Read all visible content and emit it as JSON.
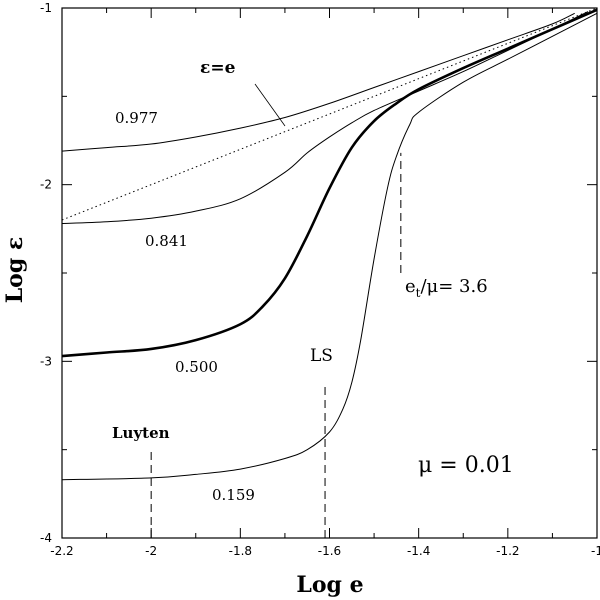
{
  "chart_data": {
    "type": "line",
    "title": "",
    "xlabel": "Log e",
    "ylabel": "Log ε",
    "xlim": [
      -2.2,
      -1
    ],
    "ylim": [
      -4,
      -1
    ],
    "grid": false,
    "x_ticks": [
      -2.2,
      -2,
      -1.8,
      -1.6,
      -1.4,
      -1.2,
      -1
    ],
    "x_tick_labels": [
      "-2.2",
      "-2",
      "-1.8",
      "-1.6",
      "-1.4",
      "-1.2",
      "-1"
    ],
    "y_ticks": [
      -4,
      -3,
      -2,
      -1
    ],
    "y_tick_labels": [
      "-4",
      "-3",
      "-2",
      "-1"
    ],
    "series": [
      {
        "name": "0.977",
        "style": "thin",
        "x": [
          -2.2,
          -2.1,
          -2.0,
          -1.9,
          -1.8,
          -1.7,
          -1.6,
          -1.5,
          -1.4,
          -1.3,
          -1.2,
          -1.1,
          -1.05
        ],
        "y": [
          -1.81,
          -1.79,
          -1.77,
          -1.73,
          -1.68,
          -1.62,
          -1.54,
          -1.45,
          -1.36,
          -1.27,
          -1.18,
          -1.09,
          -1.03
        ]
      },
      {
        "name": "0.841",
        "style": "thin",
        "x": [
          -2.2,
          -2.1,
          -2.0,
          -1.9,
          -1.8,
          -1.7,
          -1.65,
          -1.6,
          -1.55,
          -1.5,
          -1.4,
          -1.3,
          -1.2,
          -1.1,
          -1.02
        ],
        "y": [
          -2.22,
          -2.21,
          -2.19,
          -2.15,
          -2.08,
          -1.93,
          -1.82,
          -1.73,
          -1.65,
          -1.58,
          -1.47,
          -1.36,
          -1.24,
          -1.12,
          -1.02
        ]
      },
      {
        "name": "0.500",
        "style": "thick",
        "x": [
          -2.2,
          -2.1,
          -2.0,
          -1.9,
          -1.8,
          -1.75,
          -1.7,
          -1.65,
          -1.6,
          -1.55,
          -1.5,
          -1.45,
          -1.4,
          -1.3,
          -1.2,
          -1.1,
          -1.0
        ],
        "y": [
          -2.97,
          -2.95,
          -2.93,
          -2.88,
          -2.79,
          -2.69,
          -2.53,
          -2.29,
          -2.02,
          -1.79,
          -1.64,
          -1.54,
          -1.46,
          -1.34,
          -1.23,
          -1.12,
          -1.01
        ]
      },
      {
        "name": "0.159",
        "style": "thin",
        "x": [
          -2.2,
          -2.0,
          -1.9,
          -1.8,
          -1.7,
          -1.65,
          -1.6,
          -1.57,
          -1.55,
          -1.53,
          -1.5,
          -1.47,
          -1.45,
          -1.42,
          -1.4,
          -1.3,
          -1.2,
          -1.1,
          -1.0
        ],
        "y": [
          -3.67,
          -3.66,
          -3.64,
          -3.61,
          -3.55,
          -3.5,
          -3.4,
          -3.27,
          -3.12,
          -2.88,
          -2.42,
          -2.02,
          -1.84,
          -1.66,
          -1.59,
          -1.42,
          -1.29,
          -1.16,
          -1.03
        ]
      },
      {
        "name": "ε=e",
        "style": "dotted",
        "x": [
          -2.2,
          -1.0
        ],
        "y": [
          -2.2,
          -1.0
        ]
      }
    ],
    "annotations": {
      "curve_labels": [
        "0.977",
        "0.841",
        "0.500",
        "0.159"
      ],
      "equality_label": "ε=e",
      "luyten": "Luyten",
      "ls": "LS",
      "threshold": "e",
      "threshold_sub": "t",
      "threshold_rest": "/μ=  3.6",
      "mu": "μ  =  0.01"
    },
    "markers": [
      {
        "name": "Luyten",
        "x": -2.0,
        "y_from": -4,
        "y_to": -3.5
      },
      {
        "name": "LS",
        "x": -1.61,
        "y_from": -4,
        "y_to": -3.13
      },
      {
        "name": "e_t/μ",
        "x": -1.44,
        "y_from": -2.5,
        "y_to": -1.82
      }
    ]
  }
}
